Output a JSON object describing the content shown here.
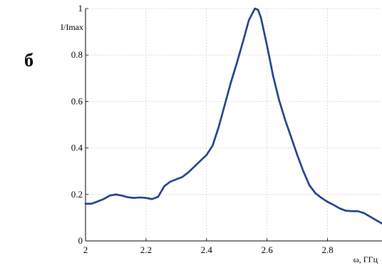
{
  "panel_label": "б",
  "colors": {
    "series": "#1f3d8c",
    "grid": "#c4c4c4",
    "axis": "#000000"
  },
  "chart_data": {
    "type": "line",
    "title": "",
    "xlabel": "ω, ГГц",
    "ylabel": "I/Imax",
    "xlim": [
      2.0,
      2.98
    ],
    "ylim": [
      0,
      1.0
    ],
    "x_ticks": [
      2,
      2.2,
      2.4,
      2.6,
      2.8
    ],
    "x_tick_labels": [
      "2",
      "2.2",
      "2.4",
      "2.6",
      "2.8"
    ],
    "y_ticks": [
      0,
      0.2,
      0.4,
      0.6,
      0.8,
      1
    ],
    "y_tick_labels": [
      "0",
      "0.2",
      "0.4",
      "0.6",
      "0.8",
      "1"
    ],
    "grid": true,
    "legend": "none",
    "series": [
      {
        "x": [
          2.0,
          2.02,
          2.04,
          2.06,
          2.08,
          2.1,
          2.12,
          2.14,
          2.16,
          2.18,
          2.2,
          2.22,
          2.24,
          2.26,
          2.28,
          2.3,
          2.32,
          2.34,
          2.36,
          2.38,
          2.4,
          2.42,
          2.44,
          2.46,
          2.48,
          2.5,
          2.52,
          2.54,
          2.56,
          2.57,
          2.58,
          2.6,
          2.62,
          2.64,
          2.66,
          2.68,
          2.7,
          2.72,
          2.74,
          2.76,
          2.78,
          2.8,
          2.82,
          2.84,
          2.86,
          2.88,
          2.9,
          2.92,
          2.94,
          2.96,
          2.98
        ],
        "y": [
          0.16,
          0.16,
          0.17,
          0.18,
          0.195,
          0.2,
          0.195,
          0.188,
          0.185,
          0.187,
          0.185,
          0.18,
          0.19,
          0.235,
          0.255,
          0.265,
          0.275,
          0.295,
          0.32,
          0.345,
          0.37,
          0.41,
          0.49,
          0.585,
          0.68,
          0.765,
          0.855,
          0.95,
          1.0,
          0.995,
          0.96,
          0.84,
          0.71,
          0.605,
          0.52,
          0.445,
          0.37,
          0.3,
          0.24,
          0.205,
          0.185,
          0.168,
          0.155,
          0.14,
          0.13,
          0.128,
          0.128,
          0.12,
          0.105,
          0.09,
          0.075
        ]
      }
    ]
  }
}
